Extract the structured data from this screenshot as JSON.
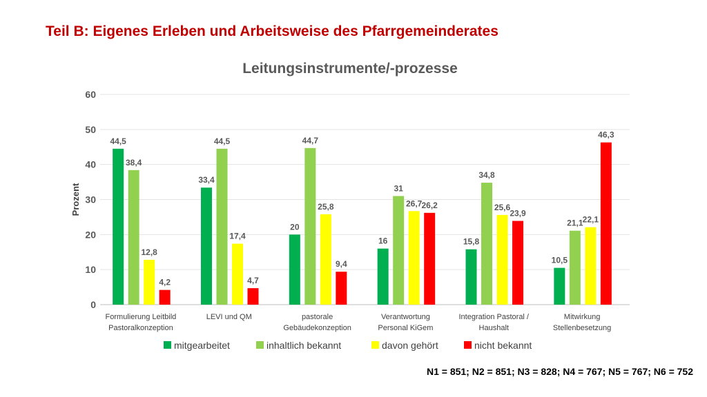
{
  "slide": {
    "title": "Teil B: Eigenes Erleben und Arbeitsweise des Pfarrgemeinderates",
    "footnote": "N1 = 851; N2 = 851; N3 = 828; N4 = 767; N5 = 767; N6 = 752"
  },
  "chart_data": {
    "type": "bar",
    "title": "Leitungsinstrumente/-prozesse",
    "ylabel": "Prozent",
    "xlabel": "",
    "ylim": [
      0,
      60
    ],
    "yticks": [
      0,
      10,
      20,
      30,
      40,
      50,
      60
    ],
    "grid": true,
    "legend_position": "bottom",
    "categories": [
      [
        "Formulierung Leitbild",
        "Pastoralkonzeption"
      ],
      [
        "LEVI und QM"
      ],
      [
        "pastorale",
        "Gebäudekonzeption"
      ],
      [
        "Verantwortung",
        "Personal KiGem"
      ],
      [
        "Integration Pastoral /",
        "Haushalt"
      ],
      [
        "Mitwirkung",
        "Stellenbesetzung"
      ]
    ],
    "series": [
      {
        "name": "mitgearbeitet",
        "color": "#00b050",
        "values": [
          44.5,
          33.4,
          20,
          16,
          15.8,
          10.5
        ],
        "labels": [
          "44,5",
          "33,4",
          "20",
          "16",
          "15,8",
          "10,5"
        ]
      },
      {
        "name": "inhaltlich bekannt",
        "color": "#92d050",
        "values": [
          38.4,
          44.5,
          44.7,
          31,
          34.8,
          21.1
        ],
        "labels": [
          "38,4",
          "44,5",
          "44,7",
          "31",
          "34,8",
          "21,1"
        ]
      },
      {
        "name": "davon gehört",
        "color": "#ffff00",
        "values": [
          12.8,
          17.4,
          25.8,
          26.7,
          25.6,
          22.1
        ],
        "labels": [
          "12,8",
          "17,4",
          "25,8",
          "26,7",
          "25,6",
          "22,1"
        ]
      },
      {
        "name": "nicht bekannt",
        "color": "#ff0000",
        "values": [
          4.2,
          4.7,
          9.4,
          26.2,
          23.9,
          46.3
        ],
        "labels": [
          "4,2",
          "4,7",
          "9,4",
          "26,2",
          "23,9",
          "46,3"
        ]
      }
    ]
  }
}
